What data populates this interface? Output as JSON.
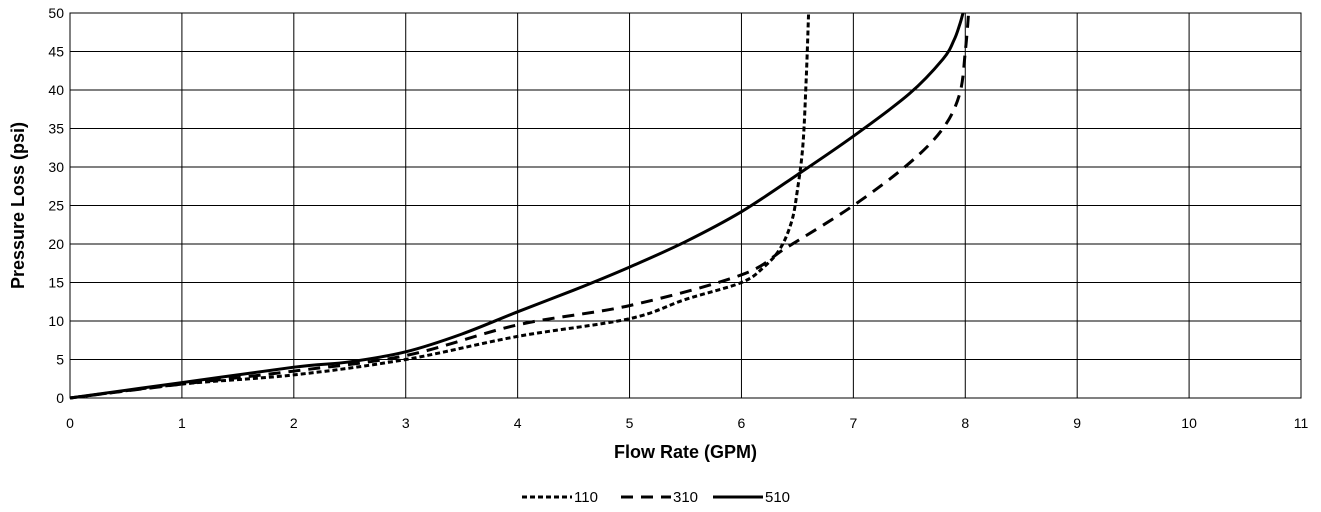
{
  "chart_data": {
    "type": "line",
    "title": "",
    "xlabel": "Flow Rate (GPM)",
    "ylabel": "Pressure Loss (psi)",
    "xlim": [
      0,
      11
    ],
    "ylim": [
      0,
      50
    ],
    "x_ticks": [
      "0",
      "1",
      "2",
      "3",
      "4",
      "5",
      "6",
      "7",
      "8",
      "9",
      "10",
      "11"
    ],
    "y_ticks": [
      "0",
      "5",
      "10",
      "15",
      "20",
      "25",
      "30",
      "35",
      "40",
      "45",
      "50"
    ],
    "grid": true,
    "legend_position": "bottom",
    "series": [
      {
        "name": "110",
        "line_style": "dotted",
        "color": "#000000",
        "x": [
          0,
          1,
          2,
          3,
          4,
          5,
          5.5,
          6,
          6.2,
          6.35,
          6.45,
          6.5,
          6.55,
          6.58,
          6.6
        ],
        "y": [
          0,
          1.8,
          3.0,
          5.0,
          8.0,
          10.3,
          12.8,
          15.0,
          17.0,
          19.5,
          23.0,
          27.0,
          33.0,
          42.0,
          50.0
        ]
      },
      {
        "name": "310",
        "line_style": "dashed",
        "color": "#000000",
        "x": [
          0,
          1,
          2,
          3,
          4,
          5,
          6,
          6.4,
          7,
          7.5,
          7.8,
          7.95,
          8.0,
          8.03
        ],
        "y": [
          0,
          1.8,
          3.5,
          5.5,
          9.5,
          12.0,
          16.0,
          19.5,
          25.0,
          30.5,
          35.0,
          39.5,
          45.0,
          50.0
        ]
      },
      {
        "name": "510",
        "line_style": "solid",
        "color": "#000000",
        "x": [
          0,
          1,
          2,
          2.5,
          3,
          3.5,
          4,
          4.5,
          5,
          5.5,
          6,
          6.5,
          7,
          7.5,
          7.8,
          7.9,
          7.95,
          7.98
        ],
        "y": [
          0,
          2.0,
          4.0,
          4.7,
          6.0,
          8.3,
          11.2,
          14.0,
          17.0,
          20.3,
          24.2,
          29.0,
          34.0,
          39.5,
          44.0,
          46.5,
          48.5,
          50.0
        ]
      }
    ]
  }
}
